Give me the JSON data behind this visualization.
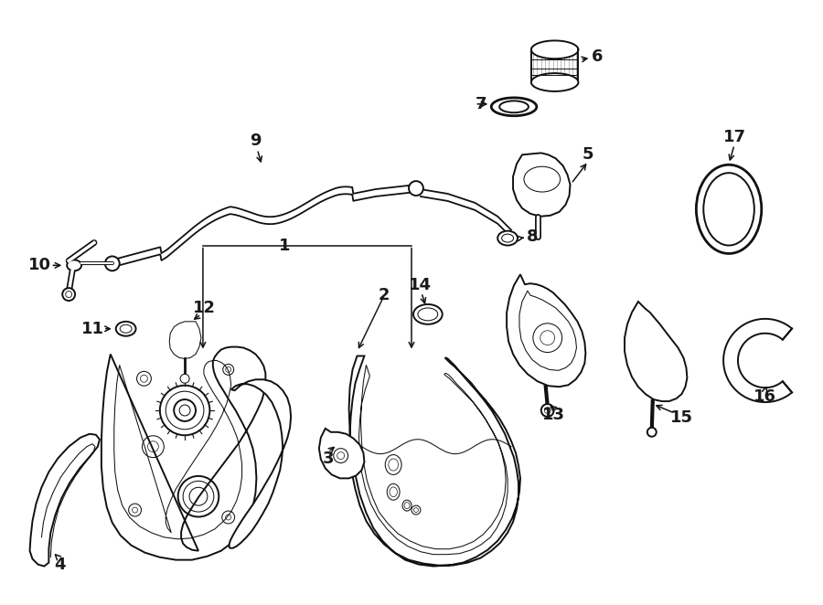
{
  "bg_color": "#ffffff",
  "line_color": "#1a1a1a",
  "lw": 1.3,
  "lw_thin": 0.7,
  "lw_thick": 2.0,
  "label_fs": 13,
  "figsize": [
    9.0,
    6.62
  ],
  "dpi": 100
}
